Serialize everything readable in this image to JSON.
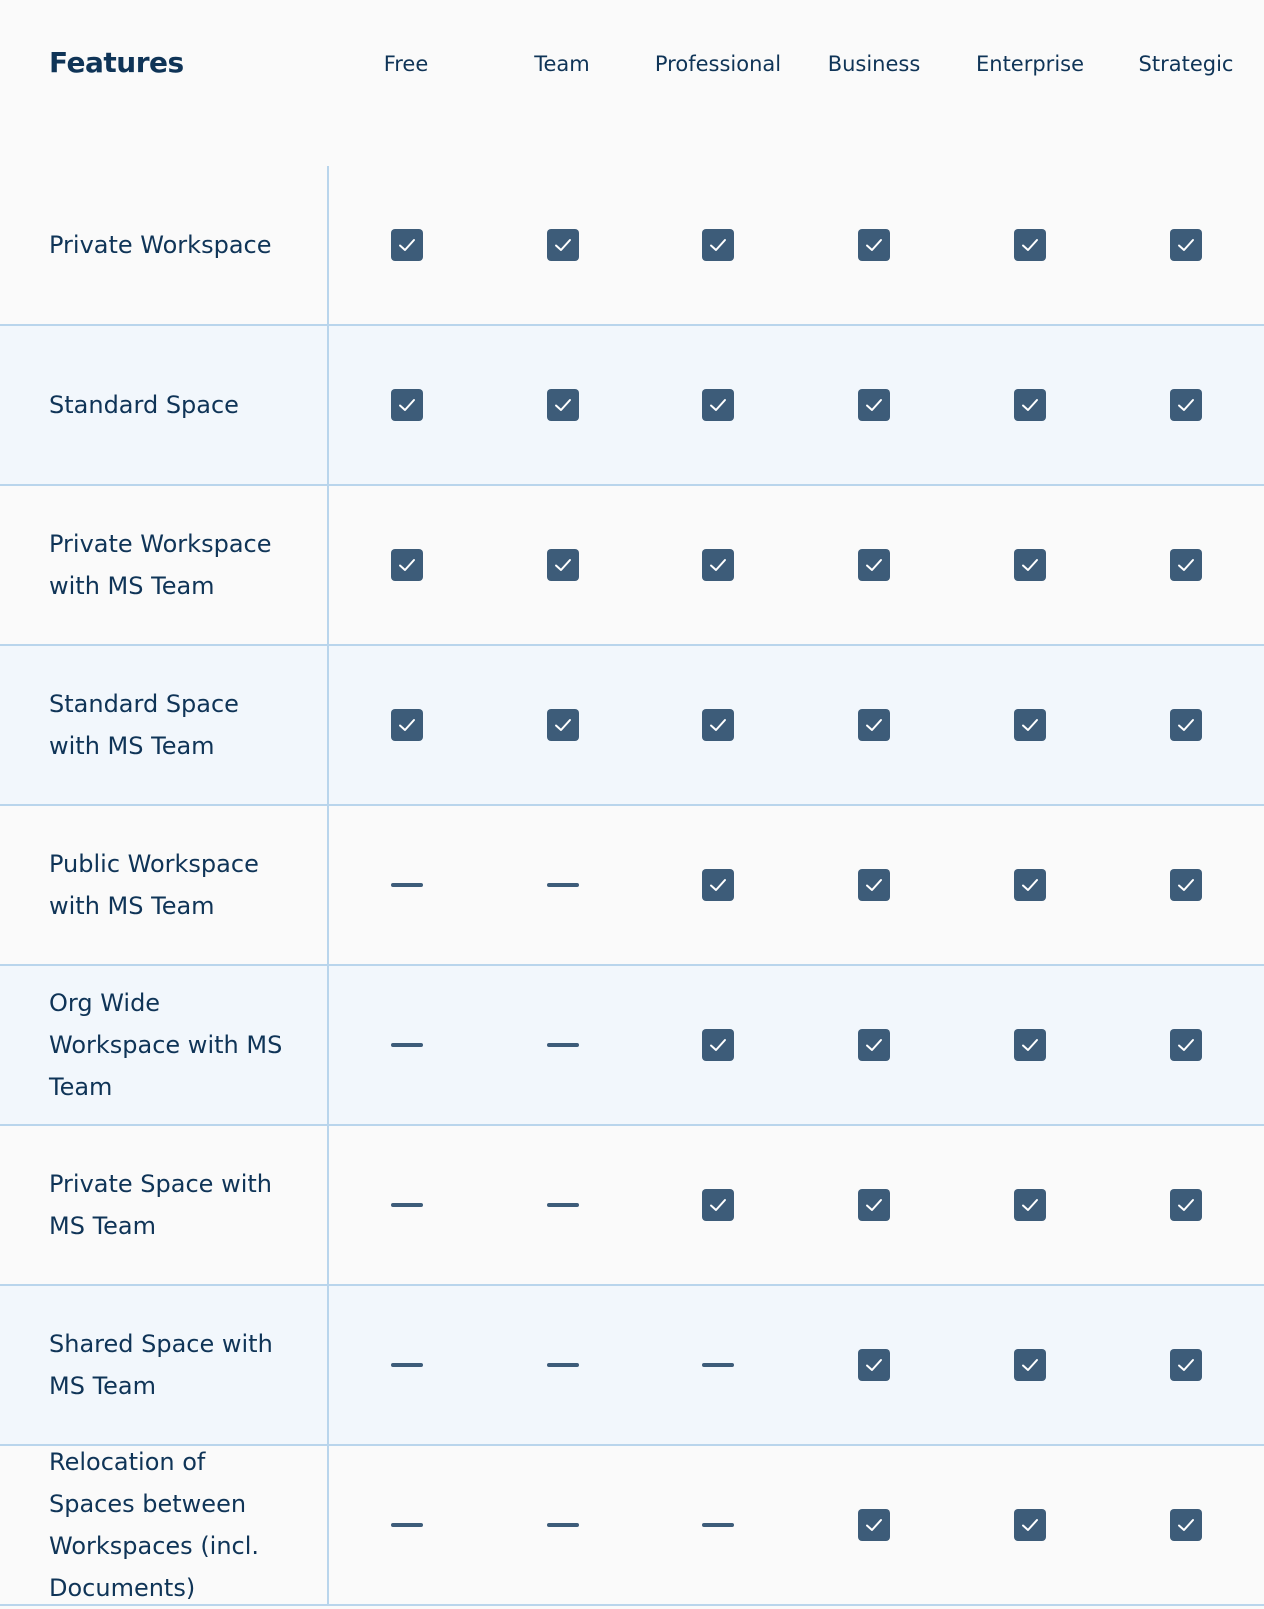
{
  "header": {
    "features_label": "Features",
    "plans": [
      "Free",
      "Team",
      "Professional",
      "Business",
      "Enterprise",
      "Strategic"
    ]
  },
  "colors": {
    "accent": "#3d5c79",
    "text": "#0f3457",
    "divider": "#b9d5ec",
    "alt_row": "#f2f7fc"
  },
  "rows": [
    {
      "feature": "Private Workspace",
      "included": [
        true,
        true,
        true,
        true,
        true,
        true
      ]
    },
    {
      "feature": "Standard Space",
      "included": [
        true,
        true,
        true,
        true,
        true,
        true
      ]
    },
    {
      "feature": "Private Workspace with MS Team",
      "included": [
        true,
        true,
        true,
        true,
        true,
        true
      ]
    },
    {
      "feature": "Standard Space with MS Team",
      "included": [
        true,
        true,
        true,
        true,
        true,
        true
      ]
    },
    {
      "feature": "Public Workspace with MS Team",
      "included": [
        false,
        false,
        true,
        true,
        true,
        true
      ]
    },
    {
      "feature": "Org Wide Workspace with MS Team",
      "included": [
        false,
        false,
        true,
        true,
        true,
        true
      ]
    },
    {
      "feature": "Private Space with MS Team",
      "included": [
        false,
        false,
        true,
        true,
        true,
        true
      ]
    },
    {
      "feature": "Shared Space with MS Team",
      "included": [
        false,
        false,
        false,
        true,
        true,
        true
      ]
    },
    {
      "feature": "Relocation of Spaces between Workspaces (incl. Documents)",
      "included": [
        false,
        false,
        false,
        true,
        true,
        true
      ]
    }
  ]
}
